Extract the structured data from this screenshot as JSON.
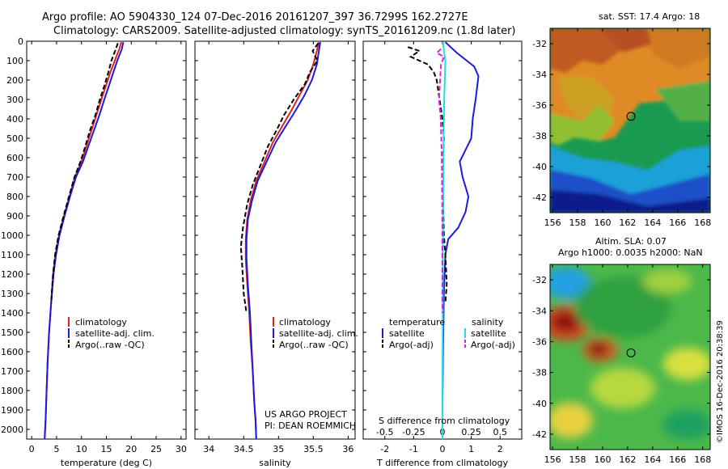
{
  "titles": {
    "line1": "Argo profile: AO 5904330_124 07-Dec-2016 20161207_397 36.7299S 162.2727E",
    "line2": "Climatology: CARS2009. Satellite-adjusted climatology: synTS_20161209.nc (1.8d later)"
  },
  "legend": {
    "climatology": "climatology",
    "satellite_adj": "satellite-adj. clim.",
    "argo_raw": "Argo(..raw -QC)",
    "temperature_head": "temperature",
    "salinity_head": "salinity",
    "satellite": "satellite",
    "argo_adj": "Argo(-adj)"
  },
  "annotations": {
    "project_line1": "US ARGO PROJECT",
    "project_line2": "PI: DEAN ROEMMICH",
    "s_diff_label": "S difference from climatology",
    "sst_title": "sat. SST: 17.4 Argo: 18",
    "sla_title1": "Altim. SLA: 0.07",
    "sla_title2": "Argo h1000: 0.0035 h2000: NaN",
    "credit": "©IMOS 16-Dec-2016 20:38:39"
  },
  "colors": {
    "climatology": "#e02020",
    "satellite": "#1a1ae0",
    "argo": "#000000",
    "sat_salinity": "#22dddd",
    "argo_salinity": "#dd22dd"
  },
  "chart_data": [
    {
      "type": "line",
      "name": "temperature-profile",
      "xlabel": "temperature (deg C)",
      "ylabel": "",
      "xlim": [
        -1,
        31
      ],
      "ylim": [
        2050,
        0
      ],
      "xticks": [
        0,
        5,
        10,
        15,
        20,
        25,
        30
      ],
      "yticks": [
        0,
        100,
        200,
        300,
        400,
        500,
        600,
        700,
        800,
        900,
        1000,
        1100,
        1200,
        1300,
        1400,
        1500,
        1600,
        1700,
        1800,
        1900,
        2000
      ],
      "series": [
        {
          "name": "climatology",
          "color": "#e02020",
          "style": "solid",
          "points": [
            [
              18.0,
              5
            ],
            [
              17.6,
              40
            ],
            [
              16.7,
              100
            ],
            [
              15.8,
              160
            ],
            [
              14.9,
              230
            ],
            [
              14.0,
              300
            ],
            [
              13.0,
              380
            ],
            [
              12.0,
              460
            ],
            [
              11.0,
              540
            ],
            [
              10.0,
              620
            ],
            [
              8.7,
              700
            ],
            [
              7.6,
              800
            ],
            [
              6.5,
              900
            ],
            [
              5.5,
              1000
            ],
            [
              4.8,
              1100
            ],
            [
              4.3,
              1200
            ],
            [
              3.9,
              1350
            ],
            [
              3.5,
              1500
            ],
            [
              3.2,
              1650
            ],
            [
              3.0,
              1800
            ],
            [
              2.8,
              1950
            ],
            [
              2.6,
              2050
            ]
          ]
        },
        {
          "name": "satellite-adj. clim.",
          "color": "#1a1ae0",
          "style": "solid",
          "points": [
            [
              18.4,
              5
            ],
            [
              18.1,
              40
            ],
            [
              17.2,
              100
            ],
            [
              16.4,
              160
            ],
            [
              15.5,
              230
            ],
            [
              14.6,
              300
            ],
            [
              13.6,
              380
            ],
            [
              12.5,
              460
            ],
            [
              11.4,
              540
            ],
            [
              10.3,
              620
            ],
            [
              8.9,
              700
            ],
            [
              7.7,
              800
            ],
            [
              6.6,
              900
            ],
            [
              5.6,
              1000
            ],
            [
              4.9,
              1100
            ],
            [
              4.4,
              1200
            ],
            [
              3.9,
              1350
            ],
            [
              3.5,
              1500
            ],
            [
              3.2,
              1650
            ],
            [
              3.0,
              1800
            ],
            [
              2.8,
              1950
            ],
            [
              2.6,
              2050
            ]
          ]
        },
        {
          "name": "Argo(..raw -QC)",
          "color": "#000000",
          "style": "dash",
          "points": [
            [
              17.3,
              10
            ],
            [
              16.9,
              40
            ],
            [
              16.0,
              100
            ],
            [
              15.4,
              160
            ],
            [
              14.6,
              230
            ],
            [
              13.7,
              300
            ],
            [
              12.8,
              380
            ],
            [
              11.7,
              460
            ],
            [
              10.8,
              540
            ],
            [
              9.8,
              620
            ],
            [
              8.6,
              700
            ],
            [
              7.5,
              800
            ],
            [
              6.4,
              900
            ],
            [
              5.4,
              1000
            ],
            [
              4.7,
              1100
            ],
            [
              4.3,
              1200
            ],
            [
              3.9,
              1350
            ]
          ]
        }
      ]
    },
    {
      "type": "line",
      "name": "salinity-profile",
      "xlabel": "salinity",
      "ylabel": "",
      "xlim": [
        33.8,
        36.1
      ],
      "ylim": [
        2050,
        0
      ],
      "xticks": [
        34,
        34.5,
        35,
        35.5,
        36
      ],
      "series": [
        {
          "name": "climatology",
          "color": "#e02020",
          "style": "solid",
          "points": [
            [
              35.58,
              5
            ],
            [
              35.55,
              50
            ],
            [
              35.5,
              120
            ],
            [
              35.42,
              200
            ],
            [
              35.3,
              280
            ],
            [
              35.18,
              360
            ],
            [
              35.05,
              440
            ],
            [
              34.92,
              520
            ],
            [
              34.8,
              620
            ],
            [
              34.68,
              720
            ],
            [
              34.6,
              820
            ],
            [
              34.55,
              920
            ],
            [
              34.53,
              1020
            ],
            [
              34.53,
              1120
            ],
            [
              34.55,
              1250
            ],
            [
              34.58,
              1400
            ],
            [
              34.6,
              1550
            ],
            [
              34.63,
              1700
            ],
            [
              34.65,
              1850
            ],
            [
              34.67,
              1950
            ],
            [
              34.68,
              2050
            ]
          ]
        },
        {
          "name": "satellite-adj. clim.",
          "color": "#1a1ae0",
          "style": "solid",
          "points": [
            [
              35.6,
              5
            ],
            [
              35.58,
              50
            ],
            [
              35.55,
              120
            ],
            [
              35.48,
              200
            ],
            [
              35.37,
              280
            ],
            [
              35.24,
              360
            ],
            [
              35.1,
              440
            ],
            [
              34.96,
              520
            ],
            [
              34.83,
              620
            ],
            [
              34.7,
              720
            ],
            [
              34.62,
              820
            ],
            [
              34.56,
              920
            ],
            [
              34.54,
              1020
            ],
            [
              34.54,
              1120
            ],
            [
              34.56,
              1250
            ],
            [
              34.59,
              1400
            ],
            [
              34.61,
              1550
            ],
            [
              34.63,
              1700
            ],
            [
              34.65,
              1850
            ],
            [
              34.67,
              1950
            ],
            [
              34.68,
              2050
            ]
          ]
        },
        {
          "name": "Argo(..raw -QC)",
          "color": "#000000",
          "style": "dash",
          "points": [
            [
              35.57,
              10
            ],
            [
              35.49,
              50
            ],
            [
              35.56,
              100
            ],
            [
              35.45,
              160
            ],
            [
              35.38,
              220
            ],
            [
              35.22,
              300
            ],
            [
              35.08,
              380
            ],
            [
              34.97,
              460
            ],
            [
              34.85,
              540
            ],
            [
              34.74,
              640
            ],
            [
              34.63,
              740
            ],
            [
              34.55,
              840
            ],
            [
              34.49,
              960
            ],
            [
              34.46,
              1060
            ],
            [
              34.48,
              1160
            ],
            [
              34.5,
              1300
            ],
            [
              34.54,
              1400
            ]
          ]
        }
      ]
    },
    {
      "type": "line",
      "name": "difference-profile",
      "xlabel": "T difference from climatology",
      "x2label": "S difference from climatology",
      "xlim": [
        -2.75,
        2.75
      ],
      "ylim": [
        2050,
        0
      ],
      "xticks": [
        -2,
        -1,
        0,
        1,
        2
      ],
      "x2ticks_labels": [
        "-0.5",
        "-0.25",
        "0",
        "0.25",
        "0.5"
      ],
      "x2ticks_values": [
        -0.5,
        -0.25,
        0,
        0.25,
        0.5
      ],
      "series": [
        {
          "name": "temperature satellite",
          "color": "#1a1ae0",
          "style": "solid",
          "points": [
            [
              0.1,
              5
            ],
            [
              0.5,
              60
            ],
            [
              1.1,
              130
            ],
            [
              1.25,
              180
            ],
            [
              1.15,
              300
            ],
            [
              1.05,
              400
            ],
            [
              1.0,
              500
            ],
            [
              0.8,
              560
            ],
            [
              0.6,
              620
            ],
            [
              0.7,
              700
            ],
            [
              0.9,
              800
            ],
            [
              0.8,
              880
            ],
            [
              0.55,
              960
            ],
            [
              0.2,
              1020
            ],
            [
              0.1,
              1100
            ],
            [
              0.05,
              1300
            ],
            [
              0.02,
              1600
            ],
            [
              0.0,
              1900
            ],
            [
              0.0,
              2050
            ]
          ]
        },
        {
          "name": "temperature Argo(-adj)",
          "color": "#000000",
          "style": "dash",
          "points": [
            [
              -1.2,
              30
            ],
            [
              -0.8,
              50
            ],
            [
              -1.1,
              80
            ],
            [
              -0.5,
              120
            ],
            [
              -0.3,
              160
            ],
            [
              -0.2,
              200
            ],
            [
              -0.1,
              300
            ],
            [
              0.0,
              400
            ],
            [
              0.05,
              500
            ],
            [
              0.0,
              700
            ],
            [
              0.05,
              1000
            ],
            [
              0.1,
              1100
            ],
            [
              0.15,
              1250
            ],
            [
              0.1,
              1350
            ]
          ]
        },
        {
          "name": "salinity satellite",
          "color": "#22dddd",
          "style": "solid",
          "points": [
            [
              0.02,
              5
            ],
            [
              0.05,
              50
            ],
            [
              0.1,
              100
            ],
            [
              0.08,
              200
            ],
            [
              0.06,
              300
            ],
            [
              0.05,
              400
            ],
            [
              0.04,
              500
            ],
            [
              0.03,
              700
            ],
            [
              0.02,
              900
            ],
            [
              0.01,
              1100
            ],
            [
              0.01,
              1400
            ],
            [
              0.0,
              1700
            ],
            [
              0.0,
              2050
            ]
          ]
        },
        {
          "name": "salinity Argo(-adj)",
          "color": "#dd22dd",
          "style": "dash",
          "points": [
            [
              -0.05,
              40
            ],
            [
              -0.2,
              60
            ],
            [
              0.05,
              80
            ],
            [
              -0.05,
              120
            ],
            [
              -0.08,
              200
            ],
            [
              -0.12,
              300
            ],
            [
              -0.06,
              400
            ],
            [
              -0.04,
              500
            ],
            [
              -0.02,
              650
            ],
            [
              -0.01,
              800
            ],
            [
              0.0,
              1000
            ],
            [
              0.0,
              1200
            ],
            [
              0.0,
              1400
            ]
          ]
        }
      ]
    },
    {
      "type": "heatmap",
      "name": "sst-map",
      "title": "sat. SST: 17.4 Argo: 18",
      "xlim": [
        155.8,
        168.6
      ],
      "ylim": [
        -43,
        -31
      ],
      "xticks": [
        156,
        158,
        160,
        162,
        164,
        166,
        168
      ],
      "yticks": [
        -32,
        -34,
        -36,
        -38,
        -40,
        -42
      ],
      "marker": {
        "lon": 162.27,
        "lat": -36.73
      }
    },
    {
      "type": "heatmap",
      "name": "sla-map",
      "title": "Altim. SLA: 0.07",
      "xlim": [
        155.8,
        168.6
      ],
      "ylim": [
        -43,
        -31
      ],
      "xticks": [
        156,
        158,
        160,
        162,
        164,
        166,
        168
      ],
      "yticks": [
        -32,
        -34,
        -36,
        -38,
        -40,
        -42
      ],
      "marker": {
        "lon": 162.27,
        "lat": -36.73
      }
    }
  ]
}
